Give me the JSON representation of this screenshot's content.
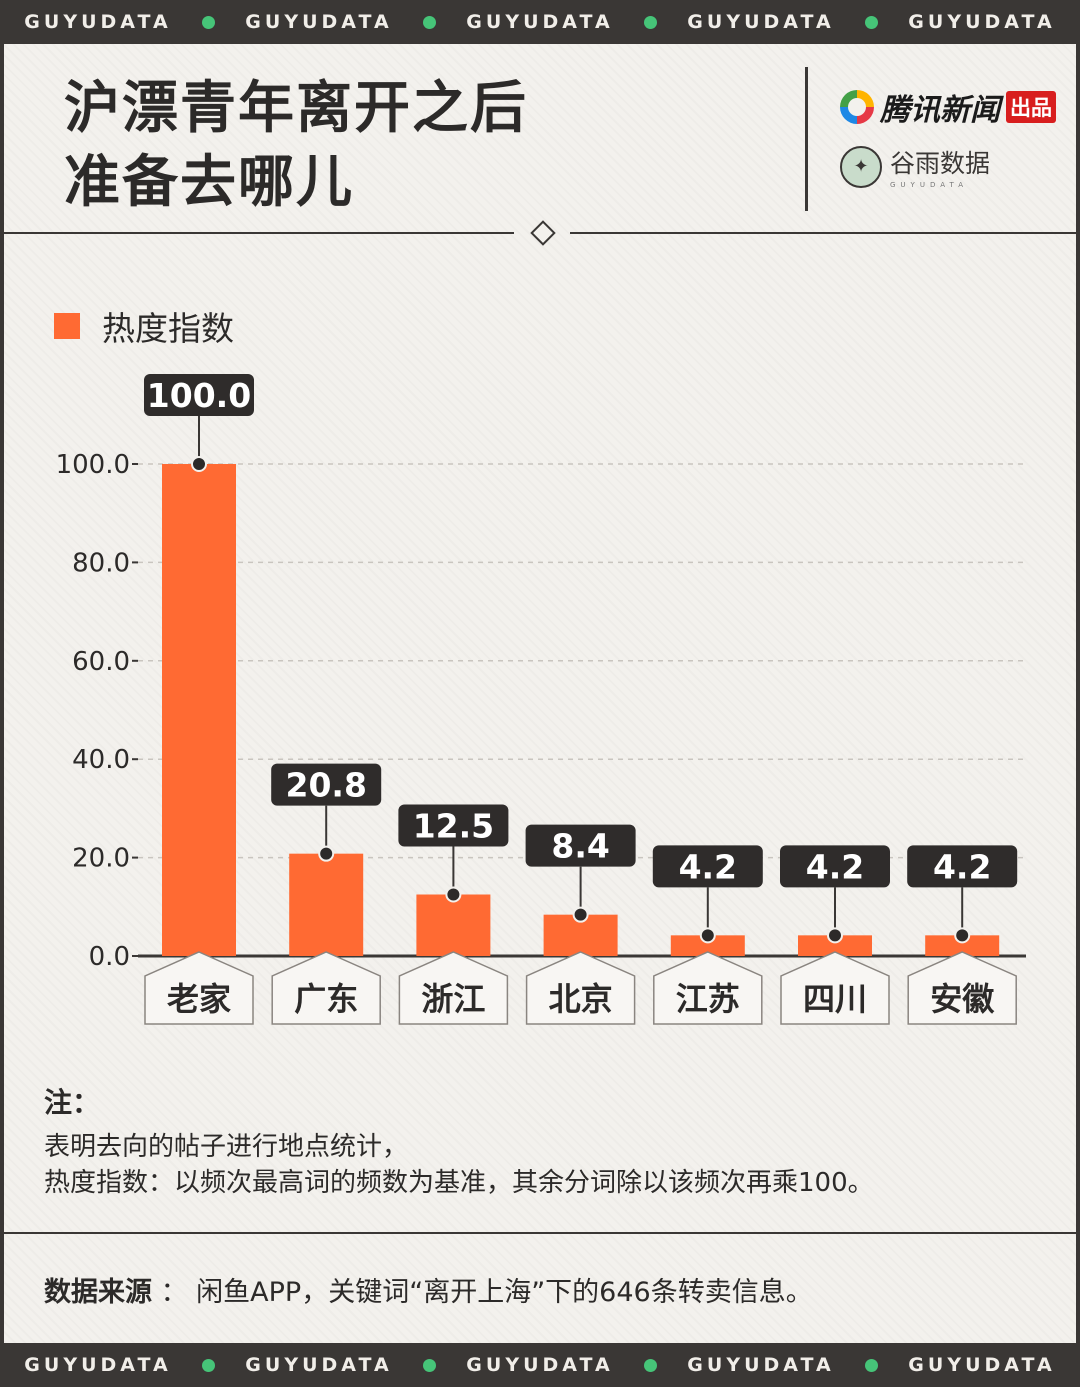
{
  "band": {
    "brand": "GUYUDATA",
    "count": 5
  },
  "header": {
    "title_line1": "沪漂青年离开之后",
    "title_line2": "准备去哪儿",
    "logo1_text": "腾讯新闻",
    "logo1_stamp": "出品",
    "logo2_text": "谷雨数据",
    "logo2_sub": "GUYUDATA"
  },
  "chart_data": {
    "type": "bar",
    "legend": "热度指数",
    "categories": [
      "老家",
      "广东",
      "浙江",
      "北京",
      "江苏",
      "四川",
      "安徽"
    ],
    "series": [
      {
        "name": "热度指数",
        "values": [
          100.0,
          20.8,
          12.5,
          8.4,
          4.2,
          4.2,
          4.2
        ]
      }
    ],
    "data_labels": [
      "100.0",
      "20.8",
      "12.5",
      "8.4",
      "4.2",
      "4.2",
      "4.2"
    ],
    "yticks": [
      "0.0",
      "20.0",
      "40.0",
      "60.0",
      "80.0",
      "100.0"
    ],
    "ylim": [
      0,
      100
    ],
    "grid": true,
    "legend_position": "top-left",
    "bar_color": "#ff6a33"
  },
  "note": {
    "head": "注：",
    "line1": "表明去向的帖子进行地点统计，",
    "line2": "热度指数：以频次最高词的频数为基准，其余分词除以该频次再乘100。"
  },
  "source": {
    "label": "数据来源",
    "sep": " ： ",
    "text": "闲鱼APP，关键词“离开上海”下的646条转卖信息。"
  }
}
